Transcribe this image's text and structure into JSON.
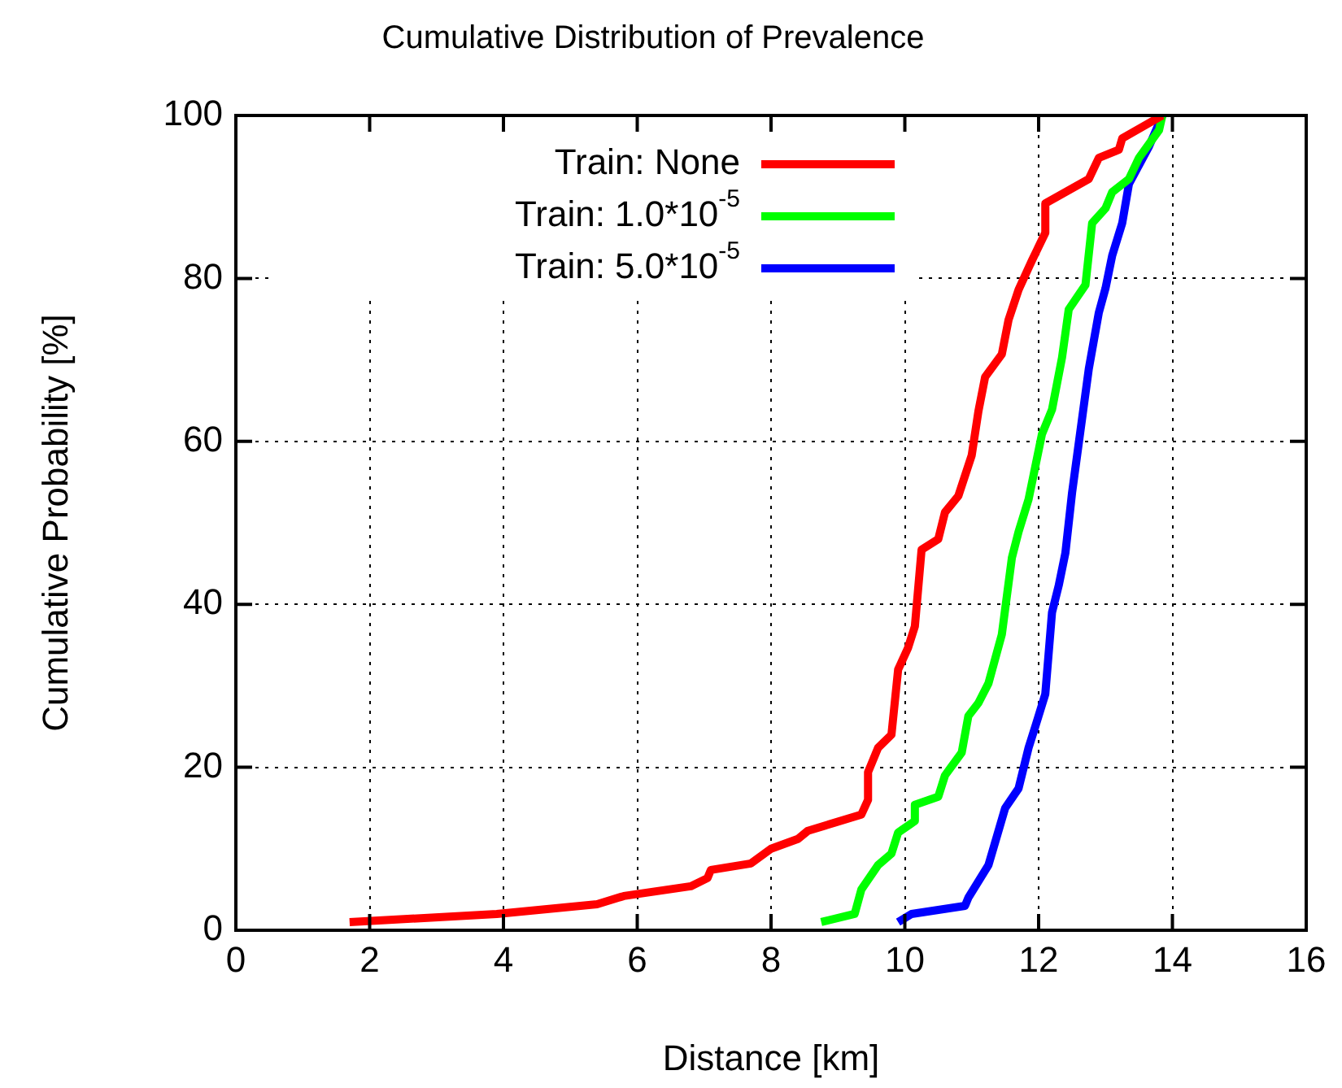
{
  "chart_data": {
    "type": "line",
    "title": "Cumulative Distribution of Prevalence",
    "xlabel": "Distance [km]",
    "ylabel": "Cumulative Probability [%]",
    "xlim": [
      0,
      16
    ],
    "xticks": [
      0,
      2,
      4,
      6,
      8,
      10,
      12,
      14,
      16
    ],
    "ylim": [
      0,
      100
    ],
    "yticks": [
      0,
      20,
      40,
      60,
      80,
      100
    ],
    "grid": true,
    "legend": "top left",
    "marker": "none",
    "line_style": "solid",
    "series": [
      {
        "name": "Train: None",
        "color": "#ff0000",
        "x": [
          1.7,
          3.9,
          5.4,
          5.8,
          6.8,
          7.05,
          7.1,
          7.7,
          8.0,
          8.4,
          8.55,
          9.35,
          9.45,
          9.45,
          9.6,
          9.8,
          9.9,
          10.05,
          10.15,
          10.25,
          10.5,
          10.6,
          10.8,
          11.0,
          11.1,
          11.2,
          11.45,
          11.55,
          11.7,
          11.9,
          12.1,
          12.1,
          12.75,
          12.9,
          13.2,
          13.25,
          13.85
        ],
        "values": [
          1,
          2,
          3.2,
          4.2,
          5.4,
          6.4,
          7.4,
          8.2,
          10,
          11.2,
          12.2,
          14.2,
          16,
          19.4,
          22.4,
          24,
          32,
          34.7,
          37.3,
          46.7,
          48,
          51.3,
          53.3,
          58.3,
          63.7,
          67.9,
          70.7,
          74.9,
          78.6,
          82.2,
          85.6,
          89.2,
          92.2,
          94.8,
          95.8,
          97.2,
          100
        ]
      },
      {
        "name": "Train: 1.0*10$^{-5}$",
        "color": "#00ff00",
        "x": [
          8.75,
          9.25,
          9.35,
          9.6,
          9.8,
          9.9,
          10.15,
          10.15,
          10.5,
          10.6,
          10.85,
          10.95,
          11.1,
          11.25,
          11.45,
          11.6,
          11.7,
          11.85,
          12.05,
          12.2,
          12.35,
          12.45,
          12.7,
          12.8,
          13.0,
          13.1,
          13.35,
          13.5,
          13.8,
          13.85
        ],
        "values": [
          1,
          2,
          5,
          8,
          9.4,
          12,
          13.4,
          15.4,
          16.4,
          19,
          21.8,
          26.3,
          27.9,
          30.3,
          36.3,
          45.7,
          48.9,
          52.9,
          60.9,
          63.9,
          70.3,
          76.2,
          79.2,
          86.8,
          88.6,
          90.6,
          92.2,
          94.8,
          98.2,
          100
        ]
      },
      {
        "name": "Train: 5.0*10$^{-5}$",
        "color": "#0000ff",
        "x": [
          9.9,
          10.1,
          10.9,
          10.95,
          11.25,
          11.5,
          11.7,
          11.85,
          11.95,
          12.1,
          12.2,
          12.3,
          12.4,
          12.5,
          12.75,
          12.9,
          13.0,
          13.1,
          13.25,
          13.35,
          13.65,
          13.85
        ],
        "values": [
          1,
          2,
          3,
          4,
          8,
          15,
          17.4,
          22.4,
          25,
          29,
          39,
          42.3,
          46.3,
          53.7,
          68.9,
          75.8,
          78.8,
          82.8,
          86.8,
          91.6,
          96.2,
          100
        ]
      }
    ]
  }
}
